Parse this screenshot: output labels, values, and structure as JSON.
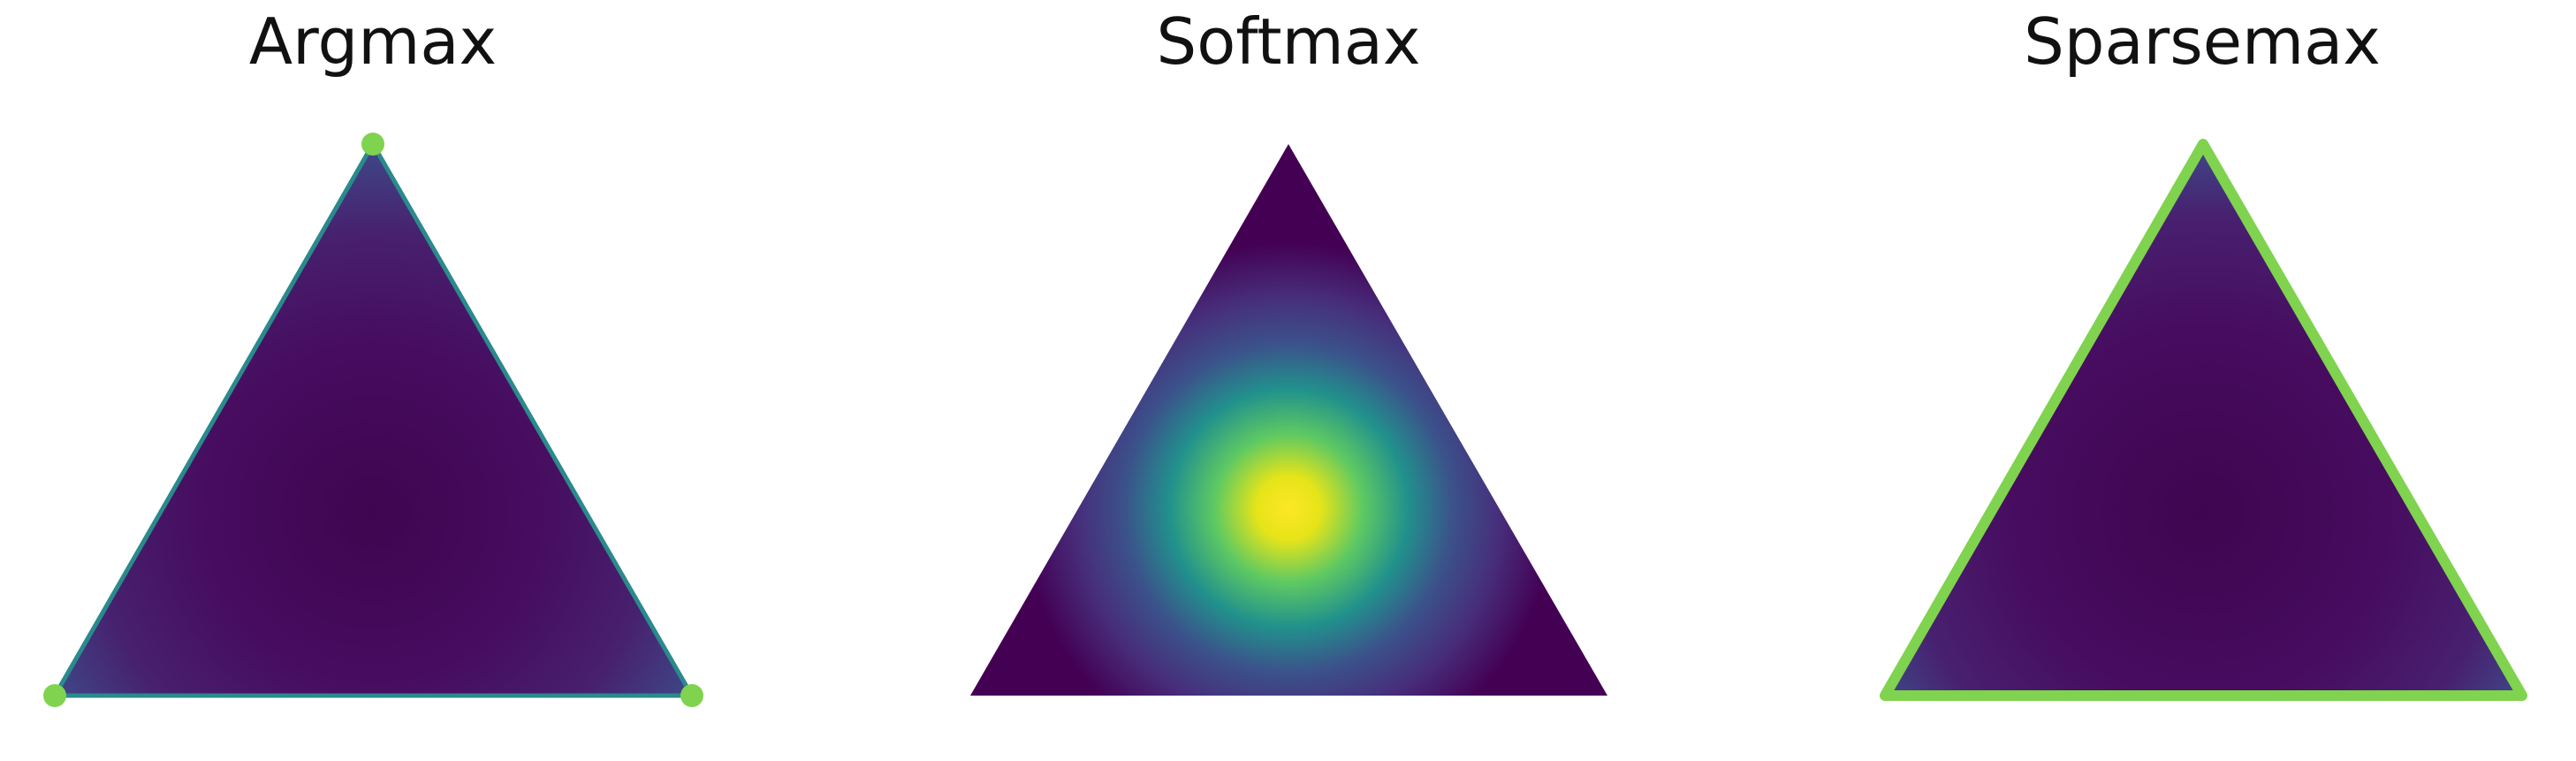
{
  "panels": [
    {
      "id": "argmax",
      "title": "Argmax"
    },
    {
      "id": "softmax",
      "title": "Softmax"
    },
    {
      "id": "sparsemax",
      "title": "Sparsemax"
    }
  ],
  "colors": {
    "background": "#ffffff",
    "highlight": "#7fd34e",
    "viridis_low": "#440154",
    "viridis_mid1": "#3b528b",
    "viridis_mid2": "#21918c",
    "viridis_mid3": "#5ec962",
    "viridis_high": "#fde725"
  }
}
